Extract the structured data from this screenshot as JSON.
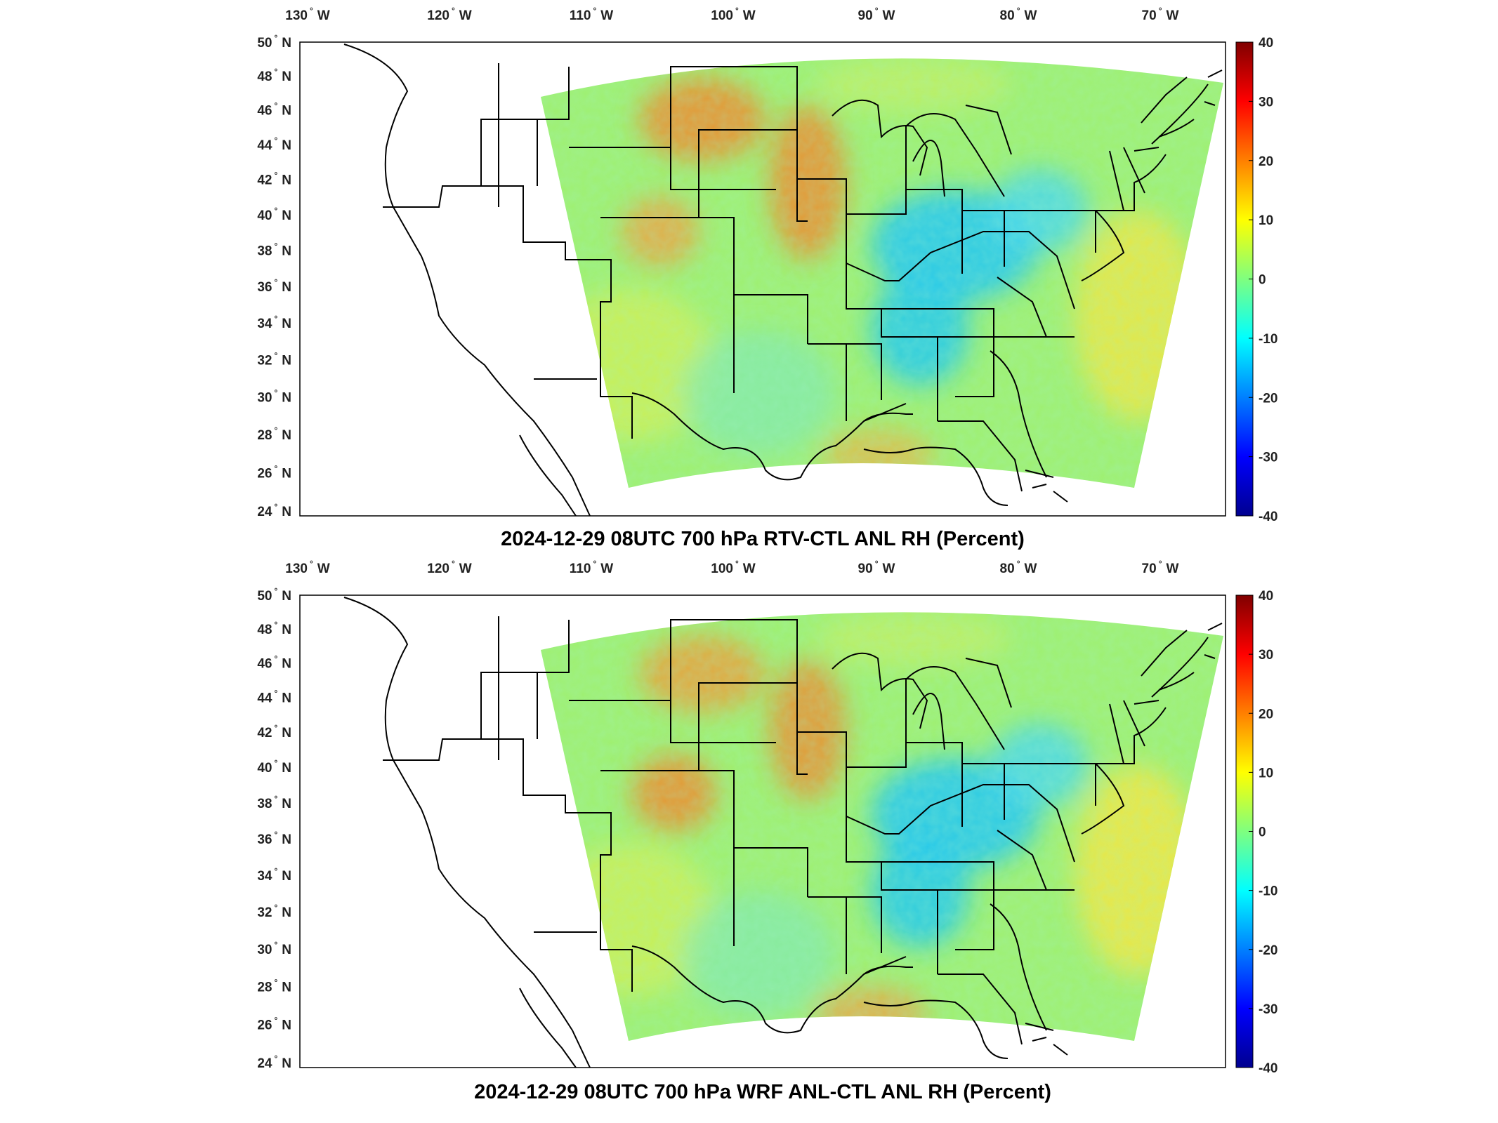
{
  "colors": {
    "colormap": "jet",
    "land_outline": "#000000",
    "no_data": "#ffffff"
  },
  "map": {
    "type": "heatmap",
    "projection": "Lambert Conformal Conic",
    "region": "Continental United States",
    "lon_range_deg": [
      -130,
      -62
    ],
    "lat_range_deg": [
      24,
      50
    ],
    "lon_ticks": [
      "130",
      "120",
      "110",
      "100",
      "90",
      "80",
      "70"
    ],
    "lon_hemisphere": "W",
    "lat_ticks": [
      "50",
      "48",
      "46",
      "44",
      "42",
      "40",
      "38",
      "36",
      "34",
      "32",
      "30",
      "28",
      "26",
      "24"
    ],
    "lat_hemisphere": "N",
    "colorbar": {
      "min": -40,
      "max": 40,
      "ticks": [
        "40",
        "30",
        "20",
        "10",
        "0",
        "-10",
        "-20",
        "-30",
        "-40"
      ]
    }
  },
  "panels": [
    {
      "title": "2024-12-29 08UTC 700 hPa RTV-CTL ANL RH (Percent)",
      "variable": "RTV-CTL",
      "level_hpa": 700
    },
    {
      "title": "2024-12-29 08UTC 700 hPa WRF ANL-CTL ANL RH (Percent)",
      "variable": "WRF ANL-CTL",
      "level_hpa": 700
    }
  ]
}
